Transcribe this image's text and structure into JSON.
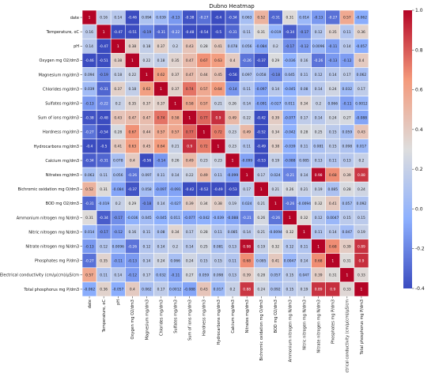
{
  "chart_data": {
    "type": "heatmap",
    "title": "Dubno Heatmap",
    "xlabel": "",
    "ylabel": "",
    "labels": [
      "date",
      "Temperature, oC",
      "pH",
      "Oxygen mg O2/dm3",
      "Magnesium mg/dm3",
      "Chlorides mg/dm3",
      "Sulfates mg/dm3",
      "Sum of ions mg/dm3",
      "Hardness mg/dm3",
      "Hydrocarbons mg/dm3",
      "Calcium mg/dm3",
      "Nitrates mg/dm3",
      "Bichromic oxidation mg O/dm3",
      "BOD mg O2/dm3",
      "Ammonium nitrogen mg N/dm3",
      "Nitric nitrogen mg N/dm3",
      "Nitrate nitrogen mg N/dm3",
      "Phosphates mg P/dm3",
      "Electrical conductivity (cm/μ(cm)/μS/cm",
      "Total phosphorus mg P/dm3"
    ],
    "matrix": [
      [
        1,
        0.16,
        0.14,
        -0.46,
        0.094,
        0.039,
        -0.13,
        -0.38,
        -0.27,
        -0.4,
        -0.34,
        0.063,
        0.52,
        -0.31,
        0.31,
        0.014,
        -0.13,
        -0.27,
        0.57,
        -0.062
      ],
      [
        0.16,
        1,
        -0.47,
        -0.51,
        -0.19,
        -0.31,
        -0.22,
        -0.48,
        -0.54,
        -0.5,
        -0.31,
        0.11,
        0.31,
        -0.019,
        -0.34,
        -0.17,
        0.12,
        0.35,
        0.11,
        0.36
      ],
      [
        0.14,
        -0.47,
        1,
        0.38,
        0.18,
        0.37,
        0.2,
        0.43,
        0.28,
        0.41,
        0.078,
        0.056,
        -0.084,
        0.2,
        -0.17,
        -0.12,
        0.0096,
        -0.11,
        0.14,
        -0.057
      ],
      [
        -0.46,
        -0.51,
        0.38,
        1,
        0.22,
        0.18,
        0.35,
        0.47,
        0.67,
        0.63,
        0.4,
        -0.26,
        -0.37,
        0.29,
        -0.036,
        0.16,
        -0.26,
        -0.13,
        -0.12,
        0.4
      ],
      [
        0.094,
        -0.19,
        0.18,
        0.22,
        1,
        0.62,
        0.37,
        0.47,
        0.44,
        0.45,
        -0.56,
        0.097,
        0.058,
        -0.18,
        0.045,
        0.11,
        0.12,
        0.14,
        0.17,
        0.062
      ],
      [
        0.039,
        -0.31,
        0.37,
        0.18,
        0.62,
        1,
        0.37,
        0.74,
        0.57,
        0.64,
        -0.14,
        0.11,
        -0.097,
        0.14,
        -0.045,
        0.08,
        0.14,
        0.24,
        0.032,
        0.17
      ],
      [
        -0.13,
        -0.22,
        0.2,
        0.35,
        0.37,
        0.37,
        1,
        0.58,
        0.57,
        0.21,
        0.26,
        0.14,
        -0.091,
        -0.027,
        0.011,
        0.34,
        0.2,
        0.066,
        -0.11,
        0.0012
      ],
      [
        -0.38,
        -0.48,
        0.43,
        0.47,
        0.47,
        0.74,
        0.58,
        1,
        0.77,
        0.9,
        0.49,
        0.22,
        -0.42,
        0.39,
        -0.077,
        0.17,
        0.14,
        0.24,
        0.27,
        -0.088
      ],
      [
        -0.27,
        -0.54,
        0.28,
        0.67,
        0.44,
        0.57,
        0.57,
        0.77,
        1,
        0.72,
        0.23,
        0.49,
        -0.52,
        0.34,
        -0.042,
        0.28,
        0.25,
        0.15,
        0.059,
        0.43
      ],
      [
        -0.4,
        -0.5,
        0.41,
        0.63,
        0.45,
        0.64,
        0.21,
        0.9,
        0.72,
        1,
        0.23,
        0.11,
        -0.49,
        0.38,
        -0.039,
        0.11,
        0.081,
        0.15,
        0.098,
        0.017
      ],
      [
        -0.34,
        -0.31,
        0.078,
        0.4,
        -0.56,
        -0.14,
        0.26,
        0.49,
        0.23,
        0.23,
        1,
        -0.099,
        -0.53,
        0.19,
        -0.088,
        0.085,
        0.13,
        0.11,
        0.13,
        0.2
      ],
      [
        0.063,
        0.11,
        0.056,
        -0.26,
        0.097,
        0.11,
        0.14,
        0.22,
        0.49,
        0.11,
        -0.099,
        1,
        0.17,
        0.024,
        -0.21,
        0.14,
        0.98,
        0.68,
        0.39,
        0.88
      ],
      [
        0.52,
        0.31,
        -0.084,
        -0.37,
        0.058,
        -0.097,
        -0.091,
        -0.42,
        -0.52,
        -0.49,
        -0.53,
        0.17,
        1,
        0.21,
        0.26,
        0.21,
        0.19,
        0.085,
        0.28,
        0.24
      ],
      [
        -0.31,
        -0.019,
        0.2,
        0.29,
        -0.18,
        0.14,
        -0.027,
        0.39,
        0.34,
        0.38,
        0.19,
        0.024,
        0.21,
        1,
        -0.26,
        -0.0094,
        0.32,
        0.41,
        0.057,
        0.092
      ],
      [
        0.31,
        -0.34,
        -0.17,
        -0.036,
        0.045,
        -0.045,
        0.011,
        -0.077,
        -0.042,
        -0.039,
        -0.088,
        -0.21,
        0.26,
        -0.26,
        1,
        0.32,
        0.12,
        0.0047,
        0.15,
        0.15
      ],
      [
        0.014,
        -0.17,
        -0.12,
        0.16,
        0.11,
        0.08,
        0.34,
        0.17,
        0.28,
        0.11,
        0.085,
        0.14,
        0.21,
        -0.0094,
        0.32,
        1,
        0.11,
        0.14,
        0.047,
        0.19
      ],
      [
        -0.13,
        0.12,
        0.0096,
        -0.26,
        0.12,
        0.14,
        0.2,
        0.14,
        0.25,
        0.081,
        0.13,
        0.98,
        0.19,
        0.32,
        0.12,
        0.11,
        1,
        0.68,
        0.39,
        0.89
      ],
      [
        -0.27,
        0.35,
        -0.11,
        -0.13,
        0.14,
        0.24,
        0.066,
        0.24,
        0.15,
        0.15,
        0.11,
        0.68,
        0.085,
        0.41,
        0.0047,
        0.14,
        0.68,
        1,
        0.31,
        0.9
      ],
      [
        0.57,
        0.11,
        0.14,
        -0.12,
        0.17,
        0.032,
        -0.11,
        0.27,
        0.059,
        0.098,
        0.13,
        0.39,
        0.28,
        0.057,
        0.15,
        0.047,
        0.39,
        0.31,
        1,
        0.33
      ],
      [
        -0.062,
        0.36,
        -0.057,
        0.4,
        0.062,
        0.17,
        0.0012,
        -0.088,
        0.43,
        0.017,
        0.2,
        0.88,
        0.24,
        0.092,
        0.15,
        0.19,
        0.89,
        0.9,
        0.33,
        1
      ]
    ],
    "colorbar": {
      "colormap": "coolwarm",
      "vmin": -0.4,
      "vmax": 1.0,
      "ticks": [
        1.0,
        0.8,
        0.6,
        0.4,
        0.2,
        0.0,
        -0.2,
        -0.4
      ]
    }
  }
}
